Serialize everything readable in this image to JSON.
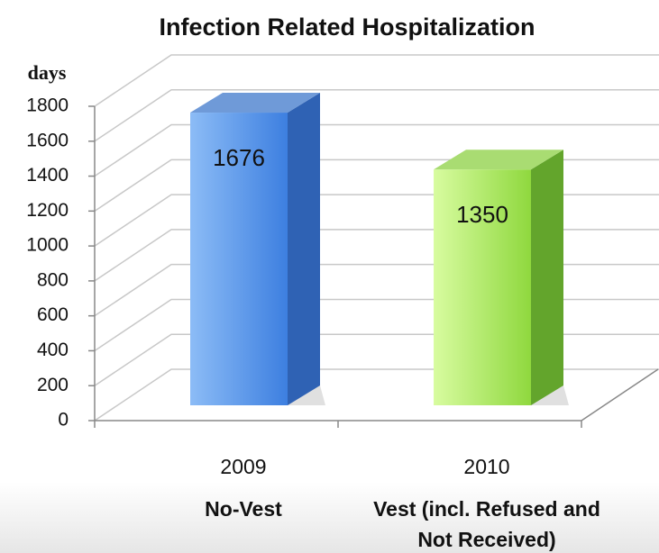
{
  "chart_data": {
    "type": "bar3d",
    "title": "Infection Related Hospitalization",
    "y_label": "days",
    "categories": [
      "2009",
      "2010"
    ],
    "group_labels": [
      "No-Vest",
      "Vest (incl. Refused and Not Received)"
    ],
    "values": [
      1676,
      1350
    ],
    "colors": [
      "#4f8fe8",
      "#9fe350"
    ],
    "ylim": [
      0,
      1800
    ],
    "yticks": [
      0,
      200,
      400,
      600,
      800,
      1000,
      1200,
      1400,
      1600,
      1800
    ],
    "grid": true
  }
}
